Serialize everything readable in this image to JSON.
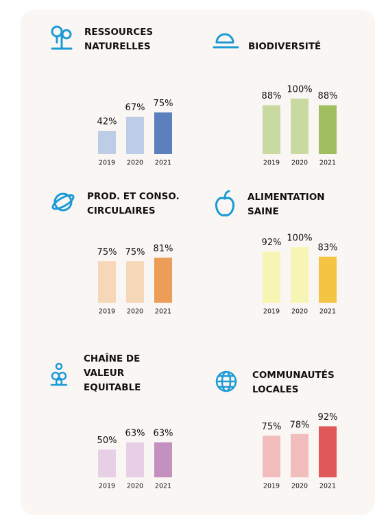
{
  "chart_data": [
    {
      "type": "bar",
      "title": [
        "RESSOURCES",
        "NATURELLES"
      ],
      "categories": [
        "2019",
        "2020",
        "2021"
      ],
      "values": [
        42,
        67,
        75
      ],
      "value_labels": [
        "42%",
        "67%",
        "75%"
      ],
      "colors": [
        "#bdcde7",
        "#bdcde7",
        "#5b80bd"
      ]
    },
    {
      "type": "bar",
      "title": [
        "BIODIVERSITÉ"
      ],
      "categories": [
        "2019",
        "2020",
        "2021"
      ],
      "values": [
        88,
        100,
        88
      ],
      "value_labels": [
        "88%",
        "100%",
        "88%"
      ],
      "colors": [
        "#c8d9a1",
        "#c8d9a1",
        "#9fbe60"
      ]
    },
    {
      "type": "bar",
      "title": [
        "PROD. ET CONSO.",
        "CIRCULAIRES"
      ],
      "categories": [
        "2019",
        "2020",
        "2021"
      ],
      "values": [
        75,
        75,
        81
      ],
      "value_labels": [
        "75%",
        "75%",
        "81%"
      ],
      "colors": [
        "#f6d7b8",
        "#f6d7b8",
        "#ec9d58"
      ]
    },
    {
      "type": "bar",
      "title": [
        "ALIMENTATION",
        "SAINE"
      ],
      "categories": [
        "2019",
        "2020",
        "2021"
      ],
      "values": [
        92,
        100,
        83
      ],
      "value_labels": [
        "92%",
        "100%",
        "83%"
      ],
      "colors": [
        "#f6f5b3",
        "#f6f5b3",
        "#f4c443"
      ]
    },
    {
      "type": "bar",
      "title": [
        "CHAÎNE DE",
        "VALEUR",
        "EQUITABLE"
      ],
      "categories": [
        "2019",
        "2020",
        "2021"
      ],
      "values": [
        50,
        63,
        63
      ],
      "value_labels": [
        "50%",
        "63%",
        "63%"
      ],
      "colors": [
        "#e7d0e5",
        "#e7d0e5",
        "#c490c0"
      ]
    },
    {
      "type": "bar",
      "title": [
        "COMMUNAUTÉS",
        "LOCALES"
      ],
      "categories": [
        "2019",
        "2020",
        "2021"
      ],
      "values": [
        75,
        78,
        92
      ],
      "value_labels": [
        "75%",
        "78%",
        "92%"
      ],
      "colors": [
        "#f2bdbd",
        "#f2bdbd",
        "#e05858"
      ]
    }
  ]
}
